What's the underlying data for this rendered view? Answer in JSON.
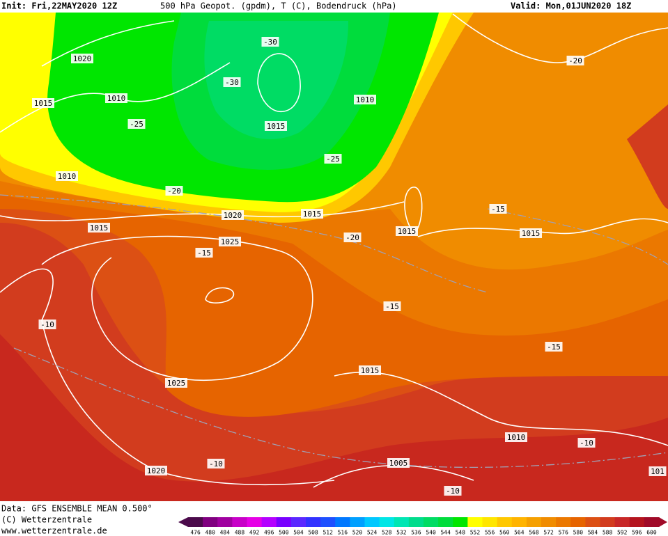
{
  "header": {
    "init": "Init: Fri,22MAY2020 12Z",
    "field": "500 hPa Geopot. (gpdm), T (C), Bodendruck (hPa)",
    "valid": "Valid: Mon,01JUN2020 18Z"
  },
  "map_labels": [
    "1020",
    "1015",
    "1010",
    "-25",
    "-30",
    "-30",
    "1015",
    "1010",
    "-25",
    "-20",
    "1010",
    "-20",
    "1015",
    "1020",
    "1015",
    "1025",
    "-15",
    "-20",
    "1015",
    "-15",
    "1015",
    "-15",
    "-10",
    "-15",
    "1015",
    "1025",
    "1010",
    "-10",
    "1005",
    "-10",
    "1020",
    "-10",
    "101"
  ],
  "footer": {
    "data": "Data: GFS ENSEMBLE MEAN 0.500°",
    "copyright": "(C) Wetterzentrale",
    "url": "www.wetterzentrale.de"
  },
  "colorbar": {
    "labels": [
      476,
      480,
      484,
      488,
      492,
      496,
      500,
      504,
      508,
      512,
      516,
      520,
      524,
      528,
      532,
      536,
      540,
      544,
      548,
      552,
      556,
      560,
      564,
      568,
      572,
      576,
      580,
      584,
      588,
      592,
      596,
      600
    ],
    "colors": [
      "#4b0a4b",
      "#800080",
      "#a000a0",
      "#c800c8",
      "#e600e6",
      "#b400ff",
      "#7800ff",
      "#5a28ff",
      "#3232ff",
      "#1e50ff",
      "#0078ff",
      "#00a0ff",
      "#00c8ff",
      "#00e6e6",
      "#00e6b4",
      "#00dc8c",
      "#00dc64",
      "#00dc3c",
      "#00e600",
      "#ffff00",
      "#ffe600",
      "#ffc800",
      "#ffb400",
      "#f5a000",
      "#f08c00",
      "#eb7800",
      "#e66400",
      "#dc5014",
      "#d23c1e",
      "#c82828",
      "#b4141e",
      "#a00a28"
    ]
  }
}
